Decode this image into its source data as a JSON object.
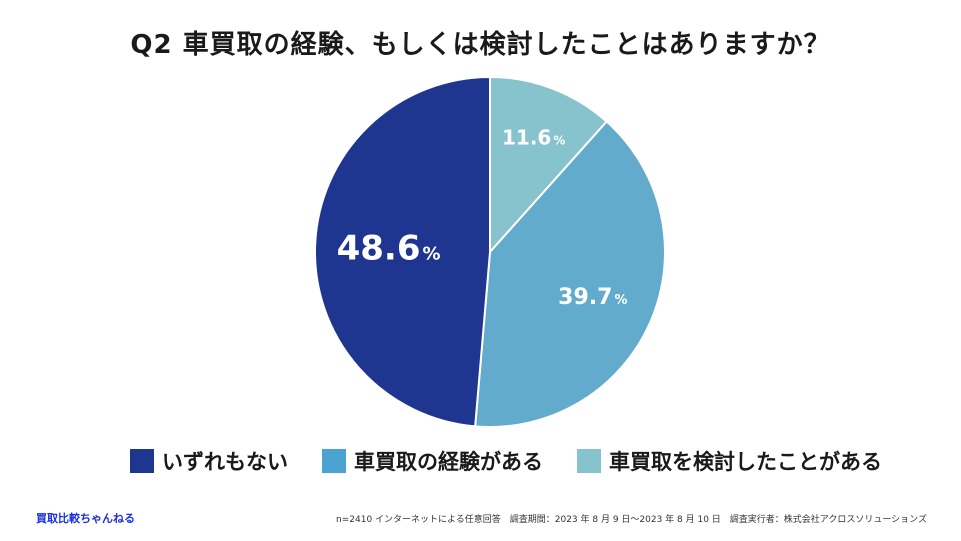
{
  "chart_data": {
    "type": "pie",
    "title": "Q2 車買取の経験、もしくは検討したことはありますか？",
    "slices": [
      {
        "label": "車買取を検討したことがある",
        "value": 11.6,
        "display": "11.6",
        "color": "#86c3cd"
      },
      {
        "label": "車買取の経験がある",
        "value": 39.7,
        "display": "39.7",
        "color": "#62abcc"
      },
      {
        "label": "いずれもない",
        "value": 48.6,
        "display": "48.6",
        "color": "#1f3690"
      }
    ],
    "unit": "%",
    "legend": [
      {
        "label": "いずれもない",
        "color": "#1f3690"
      },
      {
        "label": "車買取の経験がある",
        "color": "#4aa3d0"
      },
      {
        "label": "車買取を検討したことがある",
        "color": "#86c3cd"
      }
    ]
  },
  "footer": {
    "brand": "買取比較ちゃんねる",
    "note": "n=2410 インターネットによる任意回答　調査期間：2023 年 8 月 9 日〜2023 年 8 月 10 日　調査実行者：株式会社アクロスソリューションズ"
  }
}
